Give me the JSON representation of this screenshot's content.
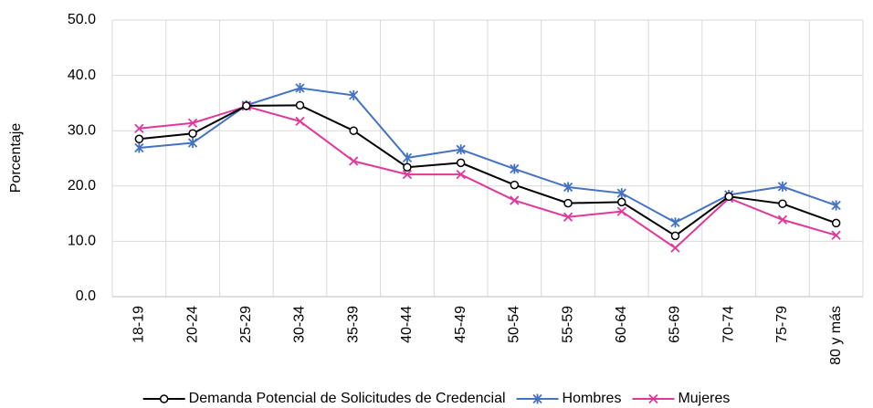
{
  "chart_data": {
    "type": "line",
    "y_label": "Porcentaje",
    "categories": [
      "18-19",
      "20-24",
      "25-29",
      "30-34",
      "35-39",
      "40-44",
      "45-49",
      "50-54",
      "55-59",
      "60-64",
      "65-69",
      "70-74",
      "75-79",
      "80 y más"
    ],
    "series": [
      {
        "name": "Demanda Potencial de Solicitudes de Credencial",
        "color": "#000000",
        "marker": "circle",
        "values": [
          28.5,
          29.5,
          34.5,
          34.6,
          30.0,
          23.4,
          24.2,
          20.2,
          16.9,
          17.1,
          11.0,
          18.1,
          16.8,
          13.3
        ]
      },
      {
        "name": "Hombres",
        "color": "#4472c4",
        "marker": "asterisk",
        "values": [
          26.9,
          27.8,
          34.6,
          37.7,
          36.4,
          25.1,
          26.6,
          23.1,
          19.8,
          18.7,
          13.4,
          18.4,
          19.9,
          16.5
        ]
      },
      {
        "name": "Mujeres",
        "color": "#e0389a",
        "marker": "x",
        "values": [
          30.4,
          31.4,
          34.4,
          31.7,
          24.5,
          22.1,
          22.1,
          17.4,
          14.4,
          15.4,
          8.8,
          17.8,
          13.9,
          11.1
        ]
      }
    ],
    "ylim": [
      0,
      50
    ],
    "yticks": [
      {
        "value": 0,
        "label": "0.0"
      },
      {
        "value": 10,
        "label": "10.0"
      },
      {
        "value": 20,
        "label": "20.0"
      },
      {
        "value": 30,
        "label": "30.0"
      },
      {
        "value": 40,
        "label": "40.0"
      },
      {
        "value": 50,
        "label": "50.0"
      }
    ],
    "grid": true,
    "legend": "bottom"
  }
}
